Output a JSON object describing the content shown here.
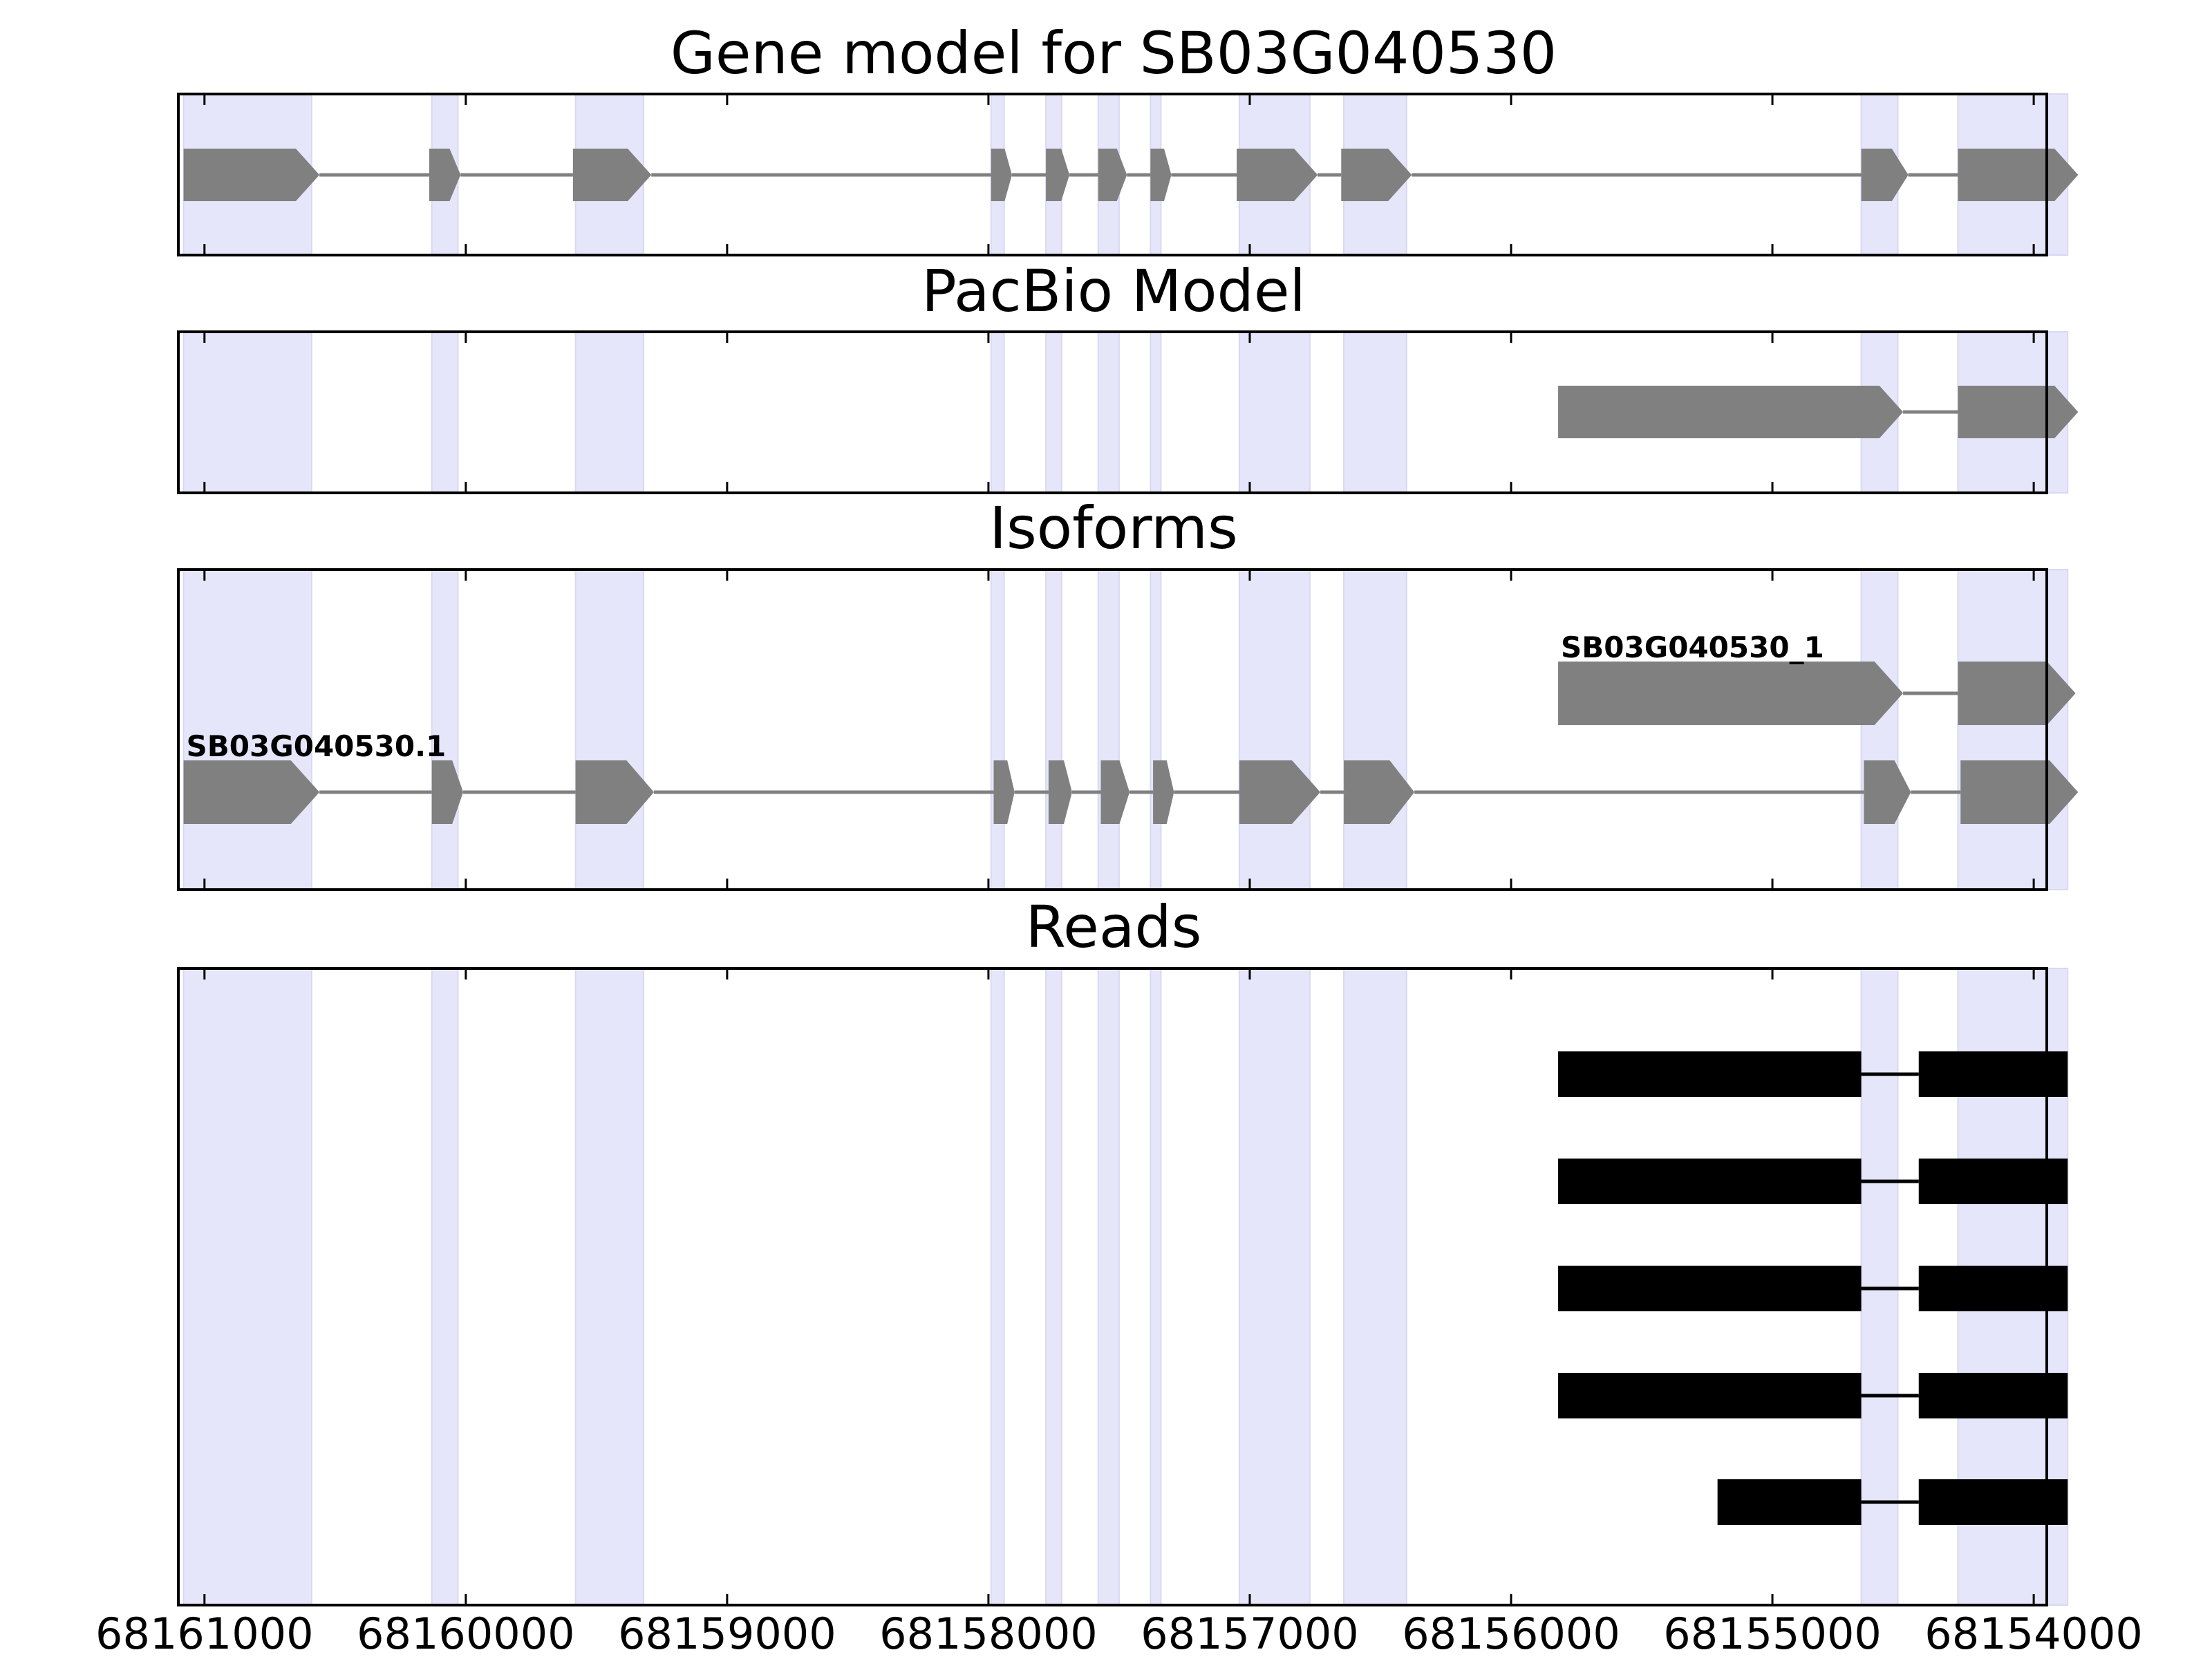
{
  "chart_data": {
    "type": "gene-track",
    "domain": {
      "start": 68161100,
      "end": 68153950
    },
    "x_ticks": [
      {
        "value": 68161000,
        "label": "68161000"
      },
      {
        "value": 68160000,
        "label": "68160000"
      },
      {
        "value": 68159000,
        "label": "68159000"
      },
      {
        "value": 68158000,
        "label": "68158000"
      },
      {
        "value": 68157000,
        "label": "68157000"
      },
      {
        "value": 68156000,
        "label": "68156000"
      },
      {
        "value": 68155000,
        "label": "68155000"
      },
      {
        "value": 68154000,
        "label": "68154000"
      }
    ],
    "exon_highlights": [
      [
        68161080,
        68160590
      ],
      [
        68160130,
        68160030
      ],
      [
        68159580,
        68159320
      ],
      [
        68157990,
        68157940
      ],
      [
        68157780,
        68157720
      ],
      [
        68157580,
        68157500
      ],
      [
        68157380,
        68157340
      ],
      [
        68157040,
        68156770
      ],
      [
        68156640,
        68156400
      ],
      [
        68154660,
        68154520
      ],
      [
        68154290,
        68153870
      ]
    ],
    "colors": {
      "highlight": "#e6e6fa",
      "model": "#808080",
      "read": "#000000",
      "intron": "#808080"
    },
    "panels": [
      {
        "title": "Gene model for SB03G040530",
        "tracks": [
          {
            "label": "",
            "strand": "-",
            "exons": [
              [
                68161080,
                68160560
              ],
              [
                68160140,
                68160020
              ],
              [
                68159590,
                68159290
              ],
              [
                68157990,
                68157910
              ],
              [
                68157780,
                68157690
              ],
              [
                68157580,
                68157470
              ],
              [
                68157380,
                68157300
              ],
              [
                68157050,
                68156740
              ],
              [
                68156650,
                68156380
              ],
              [
                68154660,
                68154480
              ],
              [
                68154290,
                68153830
              ]
            ]
          }
        ]
      },
      {
        "title": "PacBio Model",
        "tracks": [
          {
            "label": "",
            "strand": "-",
            "exons": [
              [
                68155820,
                68154500
              ],
              [
                68154290,
                68153830
              ]
            ]
          }
        ]
      },
      {
        "title": "Isoforms",
        "tracks": [
          {
            "label": "SB03G040530_1",
            "strand": "-",
            "exons": [
              [
                68155820,
                68154500
              ],
              [
                68154290,
                68153840
              ]
            ]
          },
          {
            "label": "SB03G040530.1",
            "strand": "-",
            "exons": [
              [
                68161080,
                68160560
              ],
              [
                68160130,
                68160010
              ],
              [
                68159580,
                68159280
              ],
              [
                68157980,
                68157900
              ],
              [
                68157770,
                68157680
              ],
              [
                68157570,
                68157460
              ],
              [
                68157370,
                68157290
              ],
              [
                68157040,
                68156730
              ],
              [
                68156640,
                68156370
              ],
              [
                68154650,
                68154470
              ],
              [
                68154280,
                68153830
              ]
            ]
          }
        ]
      },
      {
        "title": "Reads",
        "tracks": [
          {
            "label": "",
            "blocks": [
              [
                68155820,
                68154660
              ],
              [
                68154440,
                68153870
              ]
            ]
          },
          {
            "label": "",
            "blocks": [
              [
                68155820,
                68154660
              ],
              [
                68154440,
                68153870
              ]
            ]
          },
          {
            "label": "",
            "blocks": [
              [
                68155820,
                68154660
              ],
              [
                68154440,
                68153870
              ]
            ]
          },
          {
            "label": "",
            "blocks": [
              [
                68155820,
                68154660
              ],
              [
                68154440,
                68153870
              ]
            ]
          },
          {
            "label": "",
            "blocks": [
              [
                68155210,
                68154660
              ],
              [
                68154440,
                68153870
              ]
            ]
          }
        ]
      }
    ]
  }
}
